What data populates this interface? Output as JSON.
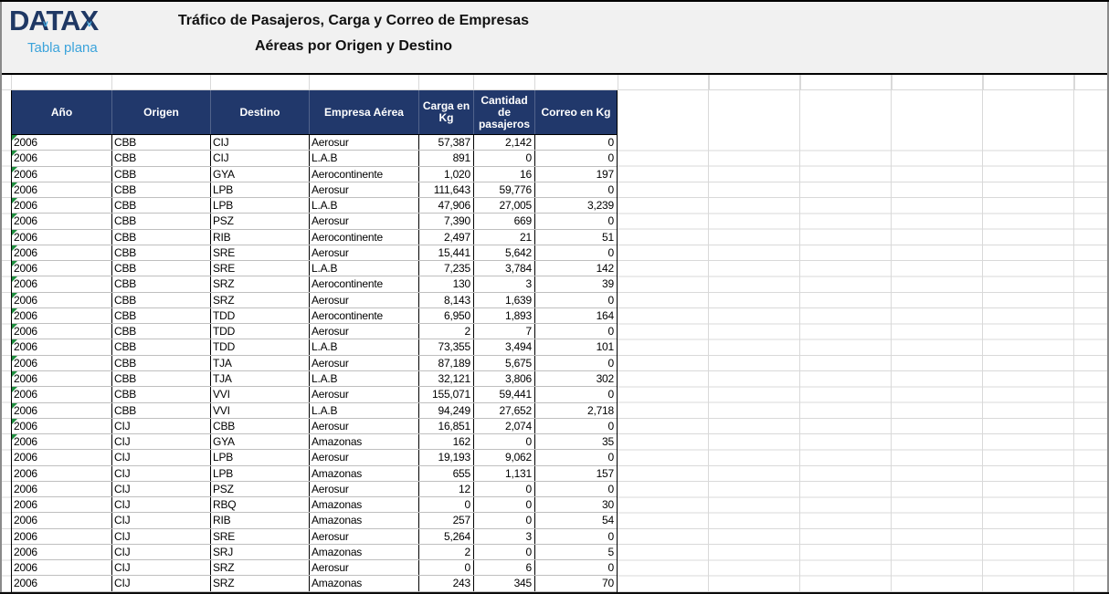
{
  "logo": {
    "brand": "DATAX",
    "subtitle": "Tabla plana"
  },
  "title": {
    "line1": "Tráfico de Pasajeros, Carga y Correo de Empresas",
    "line2": "Aéreas por Origen y Destino"
  },
  "table": {
    "columns": [
      {
        "key": "year",
        "label": "Año"
      },
      {
        "key": "origin",
        "label": "Origen"
      },
      {
        "key": "destination",
        "label": "Destino"
      },
      {
        "key": "airline",
        "label": "Empresa Aérea"
      },
      {
        "key": "cargo_kg",
        "label": "Carga en Kg"
      },
      {
        "key": "passengers",
        "label": "Cantidad de pasajeros"
      },
      {
        "key": "mail_kg",
        "label": "Correo en Kg"
      }
    ],
    "rows": [
      {
        "year": "2006",
        "origin": "CBB",
        "destination": "CIJ",
        "airline": "Aerosur",
        "cargo_kg": "57,387",
        "passengers": "2,142",
        "mail_kg": "0",
        "error_flag": true
      },
      {
        "year": "2006",
        "origin": "CBB",
        "destination": "CIJ",
        "airline": "L.A.B",
        "cargo_kg": "891",
        "passengers": "0",
        "mail_kg": "0",
        "error_flag": true
      },
      {
        "year": "2006",
        "origin": "CBB",
        "destination": "GYA",
        "airline": "Aerocontinente",
        "cargo_kg": "1,020",
        "passengers": "16",
        "mail_kg": "197",
        "error_flag": true
      },
      {
        "year": "2006",
        "origin": "CBB",
        "destination": "LPB",
        "airline": "Aerosur",
        "cargo_kg": "111,643",
        "passengers": "59,776",
        "mail_kg": "0",
        "error_flag": true
      },
      {
        "year": "2006",
        "origin": "CBB",
        "destination": "LPB",
        "airline": "L.A.B",
        "cargo_kg": "47,906",
        "passengers": "27,005",
        "mail_kg": "3,239",
        "error_flag": true
      },
      {
        "year": "2006",
        "origin": "CBB",
        "destination": "PSZ",
        "airline": "Aerosur",
        "cargo_kg": "7,390",
        "passengers": "669",
        "mail_kg": "0",
        "error_flag": true
      },
      {
        "year": "2006",
        "origin": "CBB",
        "destination": "RIB",
        "airline": "Aerocontinente",
        "cargo_kg": "2,497",
        "passengers": "21",
        "mail_kg": "51",
        "error_flag": true
      },
      {
        "year": "2006",
        "origin": "CBB",
        "destination": "SRE",
        "airline": "Aerosur",
        "cargo_kg": "15,441",
        "passengers": "5,642",
        "mail_kg": "0",
        "error_flag": true
      },
      {
        "year": "2006",
        "origin": "CBB",
        "destination": "SRE",
        "airline": "L.A.B",
        "cargo_kg": "7,235",
        "passengers": "3,784",
        "mail_kg": "142",
        "error_flag": true
      },
      {
        "year": "2006",
        "origin": "CBB",
        "destination": "SRZ",
        "airline": "Aerocontinente",
        "cargo_kg": "130",
        "passengers": "3",
        "mail_kg": "39",
        "error_flag": true
      },
      {
        "year": "2006",
        "origin": "CBB",
        "destination": "SRZ",
        "airline": "Aerosur",
        "cargo_kg": "8,143",
        "passengers": "1,639",
        "mail_kg": "0",
        "error_flag": true
      },
      {
        "year": "2006",
        "origin": "CBB",
        "destination": "TDD",
        "airline": "Aerocontinente",
        "cargo_kg": "6,950",
        "passengers": "1,893",
        "mail_kg": "164",
        "error_flag": true
      },
      {
        "year": "2006",
        "origin": "CBB",
        "destination": "TDD",
        "airline": "Aerosur",
        "cargo_kg": "2",
        "passengers": "7",
        "mail_kg": "0",
        "error_flag": true
      },
      {
        "year": "2006",
        "origin": "CBB",
        "destination": "TDD",
        "airline": "L.A.B",
        "cargo_kg": "73,355",
        "passengers": "3,494",
        "mail_kg": "101",
        "error_flag": true
      },
      {
        "year": "2006",
        "origin": "CBB",
        "destination": "TJA",
        "airline": "Aerosur",
        "cargo_kg": "87,189",
        "passengers": "5,675",
        "mail_kg": "0",
        "error_flag": true
      },
      {
        "year": "2006",
        "origin": "CBB",
        "destination": "TJA",
        "airline": "L.A.B",
        "cargo_kg": "32,121",
        "passengers": "3,806",
        "mail_kg": "302",
        "error_flag": true
      },
      {
        "year": "2006",
        "origin": "CBB",
        "destination": "VVI",
        "airline": "Aerosur",
        "cargo_kg": "155,071",
        "passengers": "59,441",
        "mail_kg": "0",
        "error_flag": true
      },
      {
        "year": "2006",
        "origin": "CBB",
        "destination": "VVI",
        "airline": "L.A.B",
        "cargo_kg": "94,249",
        "passengers": "27,652",
        "mail_kg": "2,718",
        "error_flag": true
      },
      {
        "year": "2006",
        "origin": "CIJ",
        "destination": "CBB",
        "airline": "Aerosur",
        "cargo_kg": "16,851",
        "passengers": "2,074",
        "mail_kg": "0",
        "error_flag": true
      },
      {
        "year": "2006",
        "origin": "CIJ",
        "destination": "GYA",
        "airline": "Amazonas",
        "cargo_kg": "162",
        "passengers": "0",
        "mail_kg": "35",
        "error_flag": true
      },
      {
        "year": "2006",
        "origin": "CIJ",
        "destination": "LPB",
        "airline": "Aerosur",
        "cargo_kg": "19,193",
        "passengers": "9,062",
        "mail_kg": "0",
        "error_flag": false
      },
      {
        "year": "2006",
        "origin": "CIJ",
        "destination": "LPB",
        "airline": "Amazonas",
        "cargo_kg": "655",
        "passengers": "1,131",
        "mail_kg": "157",
        "error_flag": false
      },
      {
        "year": "2006",
        "origin": "CIJ",
        "destination": "PSZ",
        "airline": "Aerosur",
        "cargo_kg": "12",
        "passengers": "0",
        "mail_kg": "0",
        "error_flag": false
      },
      {
        "year": "2006",
        "origin": "CIJ",
        "destination": "RBQ",
        "airline": "Amazonas",
        "cargo_kg": "0",
        "passengers": "0",
        "mail_kg": "30",
        "error_flag": false
      },
      {
        "year": "2006",
        "origin": "CIJ",
        "destination": "RIB",
        "airline": "Amazonas",
        "cargo_kg": "257",
        "passengers": "0",
        "mail_kg": "54",
        "error_flag": false
      },
      {
        "year": "2006",
        "origin": "CIJ",
        "destination": "SRE",
        "airline": "Aerosur",
        "cargo_kg": "5,264",
        "passengers": "3",
        "mail_kg": "0",
        "error_flag": false
      },
      {
        "year": "2006",
        "origin": "CIJ",
        "destination": "SRJ",
        "airline": "Amazonas",
        "cargo_kg": "2",
        "passengers": "0",
        "mail_kg": "5",
        "error_flag": false
      },
      {
        "year": "2006",
        "origin": "CIJ",
        "destination": "SRZ",
        "airline": "Aerosur",
        "cargo_kg": "0",
        "passengers": "6",
        "mail_kg": "0",
        "error_flag": false
      },
      {
        "year": "2006",
        "origin": "CIJ",
        "destination": "SRZ",
        "airline": "Amazonas",
        "cargo_kg": "243",
        "passengers": "345",
        "mail_kg": "70",
        "error_flag": false
      }
    ]
  },
  "colors": {
    "header_bg": "#21386B",
    "brand_navy": "#1F3864",
    "brand_blue": "#3BA3DB",
    "error_triangle": "#1E8E3E",
    "gridline": "#D9D9D9",
    "row_line": "#BFBFBF"
  }
}
